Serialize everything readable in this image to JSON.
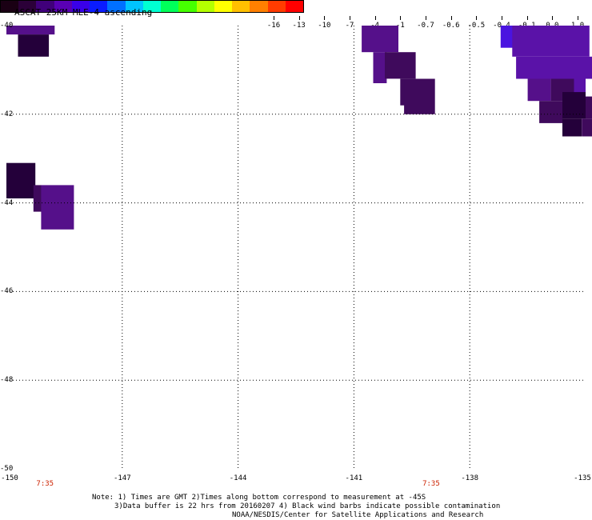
{
  "title": "ASCAT 25KM MLE-4 ascending",
  "colorbar": {
    "labels": [
      "-16",
      "-13",
      "-10",
      "-7",
      "-4",
      "-1",
      "-0.7",
      "-0.6",
      "-0.5",
      "-0.4",
      "-0.1",
      "0.0",
      "1.0"
    ],
    "colors": [
      "#1a0014",
      "#2b0038",
      "#40007a",
      "#5a00b4",
      "#3a00e8",
      "#0a1cff",
      "#0070ff",
      "#00c4ff",
      "#00ffd2",
      "#00ff5a",
      "#46ff00",
      "#b4ff00",
      "#ffff00",
      "#ffc000",
      "#ff8000",
      "#ff3c00",
      "#ff0000"
    ]
  },
  "axes": {
    "lat_labels": [
      "-40",
      "-42",
      "-44",
      "-46",
      "-48",
      "-50"
    ],
    "lon_labels": [
      "-150",
      "-147",
      "-144",
      "-141",
      "-138",
      "-135"
    ],
    "time_labels": [
      {
        "text": "7:35",
        "lon": -149
      },
      {
        "text": "7:35",
        "lon": -139
      }
    ]
  },
  "map": {
    "lon_range": [
      -150,
      -135
    ],
    "lat_range": [
      -50,
      -40
    ],
    "cell_colors": {
      "dark": "#24003a",
      "mid": "#3f0a5c",
      "purple": "#55108a",
      "violet": "#5a12a8",
      "blue": "#4a14e0"
    },
    "cells": [
      {
        "lon": -150.0,
        "lat": -40.0,
        "w": 1.25,
        "h": 0.2,
        "c": "purple"
      },
      {
        "lon": -149.7,
        "lat": -40.2,
        "w": 0.8,
        "h": 0.5,
        "c": "dark"
      },
      {
        "lon": -150.0,
        "lat": -43.1,
        "w": 0.75,
        "h": 0.8,
        "c": "dark"
      },
      {
        "lon": -149.3,
        "lat": -43.6,
        "w": 0.2,
        "h": 0.6,
        "c": "mid"
      },
      {
        "lon": -149.1,
        "lat": -43.6,
        "w": 0.85,
        "h": 1.0,
        "c": "purple"
      },
      {
        "lon": -140.8,
        "lat": -40.0,
        "w": 0.95,
        "h": 0.6,
        "c": "purple"
      },
      {
        "lon": -140.5,
        "lat": -40.6,
        "w": 0.35,
        "h": 0.7,
        "c": "purple"
      },
      {
        "lon": -140.2,
        "lat": -40.6,
        "w": 0.8,
        "h": 0.6,
        "c": "mid"
      },
      {
        "lon": -139.8,
        "lat": -41.2,
        "w": 0.55,
        "h": 0.6,
        "c": "mid"
      },
      {
        "lon": -139.7,
        "lat": -41.2,
        "w": 0.8,
        "h": 0.8,
        "c": "mid"
      },
      {
        "lon": -137.2,
        "lat": -40.0,
        "w": 0.35,
        "h": 0.5,
        "c": "blue"
      },
      {
        "lon": -136.9,
        "lat": -40.0,
        "w": 2.0,
        "h": 0.7,
        "c": "violet"
      },
      {
        "lon": -136.8,
        "lat": -40.7,
        "w": 2.0,
        "h": 0.5,
        "c": "violet"
      },
      {
        "lon": -136.5,
        "lat": -41.2,
        "w": 0.6,
        "h": 0.5,
        "c": "purple"
      },
      {
        "lon": -135.9,
        "lat": -41.2,
        "w": 0.9,
        "h": 0.5,
        "c": "mid"
      },
      {
        "lon": -135.3,
        "lat": -41.0,
        "w": 0.3,
        "h": 0.8,
        "c": "violet"
      },
      {
        "lon": -136.2,
        "lat": -41.7,
        "w": 0.6,
        "h": 0.5,
        "c": "mid"
      },
      {
        "lon": -135.6,
        "lat": -41.5,
        "w": 0.6,
        "h": 0.6,
        "c": "dark"
      },
      {
        "lon": -135.0,
        "lat": -41.6,
        "w": 0.3,
        "h": 0.5,
        "c": "mid"
      },
      {
        "lon": -135.6,
        "lat": -42.1,
        "w": 0.5,
        "h": 0.4,
        "c": "dark"
      },
      {
        "lon": -135.1,
        "lat": -42.1,
        "w": 0.4,
        "h": 0.4,
        "c": "mid"
      },
      {
        "lon": -134.7,
        "lat": -42.1,
        "w": 0.4,
        "h": 0.8,
        "c": "violet"
      }
    ]
  },
  "notes": [
    "Note: 1) Times are GMT 2)Times along bottom correspond to measurement at -45S",
    "3)Data buffer is 22 hrs from 20160207 4) Black wind barbs indicate possible contamination",
    "NOAA/NESDIS/Center for Satellite Applications and Research"
  ]
}
